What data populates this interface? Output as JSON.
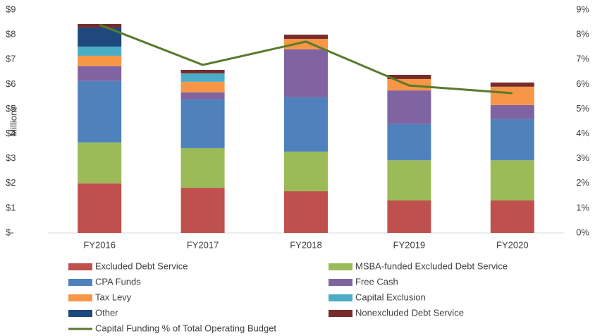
{
  "chart_data": {
    "type": "bar",
    "stacked": true,
    "y_label": "Millions",
    "categories": [
      "FY2016",
      "FY2017",
      "FY2018",
      "FY2019",
      "FY2020"
    ],
    "series": [
      {
        "name": "Excluded Debt Service",
        "color": "#c0504d",
        "values": [
          2.0,
          1.82,
          1.68,
          1.31,
          1.31
        ]
      },
      {
        "name": "MSBA-funded Excluded Debt Service",
        "color": "#9bbb59",
        "values": [
          1.65,
          1.6,
          1.6,
          1.62,
          1.62
        ]
      },
      {
        "name": "CPA Funds",
        "color": "#4f81bd",
        "values": [
          2.48,
          1.96,
          2.19,
          1.46,
          1.66
        ]
      },
      {
        "name": "Free Cash",
        "color": "#8064a2",
        "values": [
          0.6,
          0.29,
          1.94,
          1.36,
          0.57
        ]
      },
      {
        "name": "Tax Levy",
        "color": "#f79646",
        "values": [
          0.42,
          0.43,
          0.42,
          0.46,
          0.74
        ]
      },
      {
        "name": "Capital Exclusion",
        "color": "#4bacc6",
        "values": [
          0.37,
          0.34,
          0,
          0,
          0
        ]
      },
      {
        "name": "Other",
        "color": "#1f497d",
        "values": [
          0.77,
          0,
          0,
          0,
          0
        ]
      },
      {
        "name": "Nonexcluded Debt Service",
        "color": "#772c2a",
        "values": [
          0.14,
          0.14,
          0.17,
          0.17,
          0.17
        ]
      },
      {
        "name": "Capital Funding % of Total Operating Budget",
        "color": "#5a7a2e",
        "type": "line",
        "axis": "y2",
        "values": [
          8.4,
          6.78,
          7.72,
          5.95,
          5.64
        ]
      }
    ],
    "ylim": [
      0,
      9
    ],
    "yticks": [
      {
        "value": 0,
        "label": "$-"
      },
      {
        "value": 1,
        "label": "$1"
      },
      {
        "value": 2,
        "label": "$2"
      },
      {
        "value": 3,
        "label": "$3"
      },
      {
        "value": 4,
        "label": "$4"
      },
      {
        "value": 5,
        "label": "$5"
      },
      {
        "value": 6,
        "label": "$6"
      },
      {
        "value": 7,
        "label": "$7"
      },
      {
        "value": 8,
        "label": "$8"
      },
      {
        "value": 9,
        "label": "$9"
      }
    ],
    "y2lim": [
      0,
      9
    ],
    "y2ticks": [
      {
        "value": 0,
        "label": "0%"
      },
      {
        "value": 1,
        "label": "1%"
      },
      {
        "value": 2,
        "label": "2%"
      },
      {
        "value": 3,
        "label": "3%"
      },
      {
        "value": 4,
        "label": "4%"
      },
      {
        "value": 5,
        "label": "5%"
      },
      {
        "value": 6,
        "label": "6%"
      },
      {
        "value": 7,
        "label": "7%"
      },
      {
        "value": 8,
        "label": "8%"
      },
      {
        "value": 9,
        "label": "9%"
      }
    ],
    "grid": false,
    "legend": "bottom"
  }
}
